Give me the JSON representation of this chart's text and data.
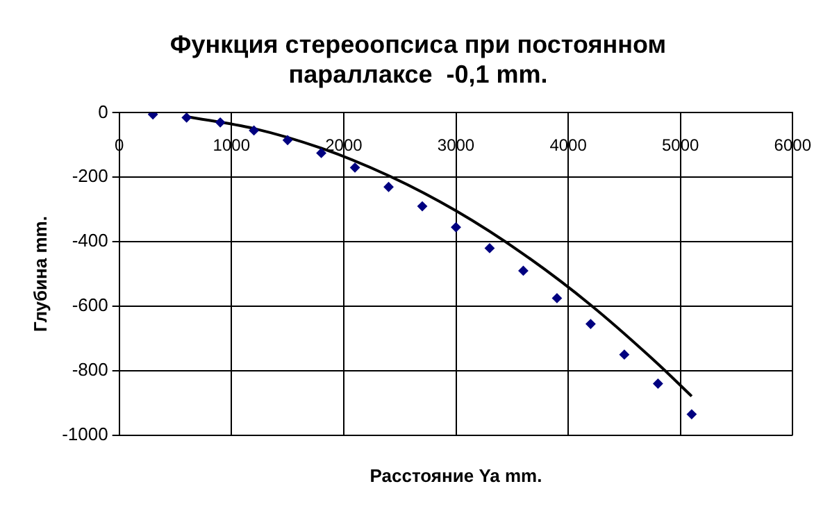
{
  "chart_data": {
    "type": "scatter",
    "title": [
      "Функция стереоопсиса при постоянном",
      "параллаксе  -0,1 mm."
    ],
    "xlabel": "Расстояние Ya mm.",
    "ylabel": "Глубина mm.",
    "series": [
      {
        "type": "scatter",
        "color": "#000080",
        "marker": "diamond",
        "x": [
          300,
          600,
          900,
          1200,
          1500,
          1800,
          2100,
          2400,
          2700,
          3000,
          3300,
          3600,
          3900,
          4200,
          4500,
          4800,
          5100
        ],
        "values": [
          -5,
          -15,
          -30,
          -55,
          -85,
          -125,
          -170,
          -230,
          -290,
          -355,
          -420,
          -490,
          -575,
          -655,
          -750,
          -840,
          -935
        ]
      },
      {
        "type": "line",
        "color": "#000000",
        "marker": "none",
        "line_style": "solid",
        "x": [
          600,
          1200,
          1800,
          2400,
          3000,
          3600,
          4200,
          4800,
          5100
        ],
        "values": [
          -12,
          -49,
          -110,
          -195,
          -304,
          -438,
          -596,
          -779,
          -879
        ]
      }
    ],
    "xlim": [
      0,
      6000
    ],
    "xticks": [
      0,
      1000,
      2000,
      3000,
      4000,
      5000,
      6000
    ],
    "ylim": [
      -1000,
      0
    ],
    "yticks": [
      -1000,
      -800,
      -600,
      -400,
      -200,
      0
    ],
    "grid": true,
    "legend": false
  }
}
